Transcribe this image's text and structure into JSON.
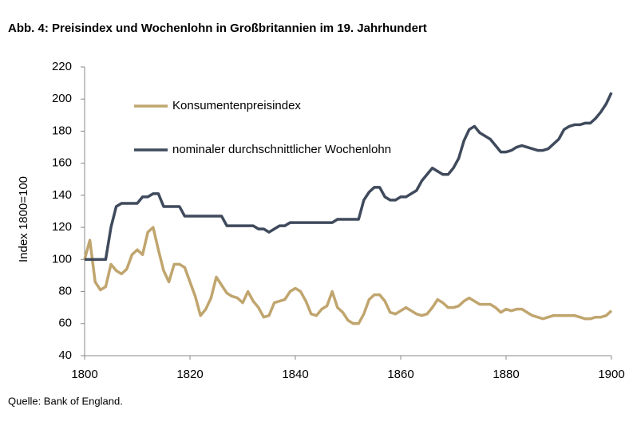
{
  "chart_data": {
    "type": "line",
    "title": "Abb. 4: Preisindex und Wochenlohn in Großbritannien im 19. Jahrhundert",
    "y_label": "Index 1800=100",
    "source": "Quelle: Bank of England.",
    "x": [
      1800,
      1801,
      1802,
      1803,
      1804,
      1805,
      1806,
      1807,
      1808,
      1809,
      1810,
      1811,
      1812,
      1813,
      1814,
      1815,
      1816,
      1817,
      1818,
      1819,
      1820,
      1821,
      1822,
      1823,
      1824,
      1825,
      1826,
      1827,
      1828,
      1829,
      1830,
      1831,
      1832,
      1833,
      1834,
      1835,
      1836,
      1837,
      1838,
      1839,
      1840,
      1841,
      1842,
      1843,
      1844,
      1845,
      1846,
      1847,
      1848,
      1849,
      1850,
      1851,
      1852,
      1853,
      1854,
      1855,
      1856,
      1857,
      1858,
      1859,
      1860,
      1861,
      1862,
      1863,
      1864,
      1865,
      1866,
      1867,
      1868,
      1869,
      1870,
      1871,
      1872,
      1873,
      1874,
      1875,
      1876,
      1877,
      1878,
      1879,
      1880,
      1881,
      1882,
      1883,
      1884,
      1885,
      1886,
      1887,
      1888,
      1889,
      1890,
      1891,
      1892,
      1893,
      1894,
      1895,
      1896,
      1897,
      1898,
      1899,
      1900
    ],
    "series": [
      {
        "name": "Konsumentenpreisindex",
        "color": "#c0a56e",
        "values": [
          100,
          112,
          86,
          81,
          83,
          97,
          93,
          91,
          94,
          103,
          106,
          103,
          117,
          120,
          106,
          93,
          86,
          97,
          97,
          95,
          86,
          77,
          65,
          69,
          76,
          89,
          84,
          79,
          77,
          76,
          73,
          80,
          74,
          70,
          64,
          65,
          73,
          74,
          75,
          80,
          82,
          80,
          74,
          66,
          65,
          69,
          71,
          80,
          70,
          67,
          62,
          60,
          60,
          66,
          75,
          78,
          78,
          74,
          67,
          66,
          68,
          70,
          68,
          66,
          65,
          66,
          70,
          75,
          73,
          70,
          70,
          71,
          74,
          76,
          74,
          72,
          72,
          72,
          70,
          67,
          69,
          68,
          69,
          69,
          67,
          65,
          64,
          63,
          64,
          65,
          65,
          65,
          65,
          65,
          64,
          63,
          63,
          64,
          64,
          65,
          68
        ]
      },
      {
        "name": "nominaler durchschnittlicher Wochenlohn",
        "color": "#3f4a5c",
        "values": [
          100,
          100,
          100,
          100,
          100,
          120,
          133,
          135,
          135,
          135,
          135,
          139,
          139,
          141,
          141,
          133,
          133,
          133,
          133,
          127,
          127,
          127,
          127,
          127,
          127,
          127,
          127,
          121,
          121,
          121,
          121,
          121,
          121,
          119,
          119,
          117,
          119,
          121,
          121,
          123,
          123,
          123,
          123,
          123,
          123,
          123,
          123,
          123,
          125,
          125,
          125,
          125,
          125,
          137,
          142,
          145,
          145,
          139,
          137,
          137,
          139,
          139,
          141,
          143,
          149,
          153,
          157,
          155,
          153,
          153,
          157,
          163,
          174,
          181,
          183,
          179,
          177,
          175,
          171,
          167,
          167,
          168,
          170,
          171,
          170,
          169,
          168,
          168,
          169,
          172,
          175,
          181,
          183,
          184,
          184,
          185,
          185,
          188,
          192,
          197,
          204
        ]
      }
    ],
    "xlim": [
      1800,
      1900
    ],
    "xticks": [
      1800,
      1820,
      1840,
      1860,
      1880,
      1900
    ],
    "ylim": [
      40,
      220
    ],
    "yticks": [
      40,
      60,
      80,
      100,
      120,
      140,
      160,
      180,
      200,
      220
    ],
    "grid": false,
    "legend": "upper left"
  }
}
